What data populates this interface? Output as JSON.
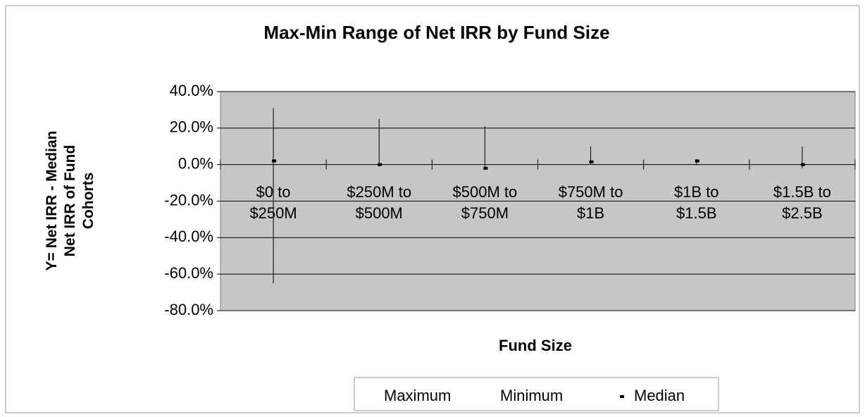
{
  "chart_data": {
    "type": "hilo",
    "title": "Max-Min Range of Net IRR by Fund Size",
    "x_label": "Fund Size",
    "y_label": "Y= Net IRR - Median\nNet IRR of Fund\nCohorts",
    "categories": [
      "$0 to\n$250M",
      "$250M to\n$500M",
      "$500M to\n$750M",
      "$750M to\n$1B",
      "$1B to\n$1.5B",
      "$1.5B to\n$2.5B"
    ],
    "series": [
      {
        "name": "Maximum",
        "color": "#000000",
        "values": [
          31,
          25,
          21,
          10,
          3,
          10
        ]
      },
      {
        "name": "Minimum",
        "color": "#000000",
        "values": [
          -65,
          -1,
          -3,
          0,
          -0.5,
          -2
        ]
      },
      {
        "name": "Median",
        "color": "#000000",
        "values": [
          2,
          0,
          -2,
          1.5,
          2,
          0
        ]
      }
    ],
    "ylim": [
      -80,
      40
    ],
    "yticks": [
      {
        "value": -80,
        "label": "-80.0%"
      },
      {
        "value": -60,
        "label": "-60.0%"
      },
      {
        "value": -40,
        "label": "-40.0%"
      },
      {
        "value": -20,
        "label": "-20.0%"
      },
      {
        "value": 0,
        "label": "0.0%"
      },
      {
        "value": 20,
        "label": "20.0%"
      },
      {
        "value": 40,
        "label": "40.0%"
      }
    ],
    "grid": true,
    "plot_color": "#c6c6c6"
  }
}
